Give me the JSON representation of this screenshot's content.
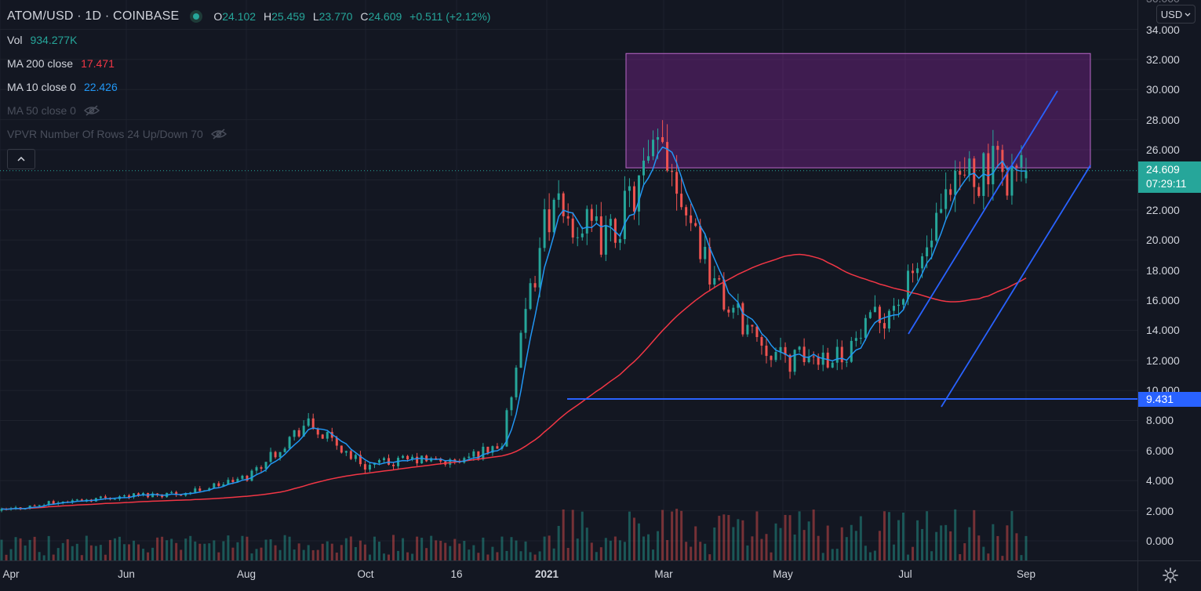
{
  "header": {
    "symbol": "ATOM/USD · 1D · COINBASE",
    "o_label": "O",
    "o_value": "24.102",
    "h_label": "H",
    "h_value": "25.459",
    "l_label": "L",
    "l_value": "23.770",
    "c_label": "C",
    "c_value": "24.609",
    "change": "+0.511 (+2.12%)"
  },
  "indicators": {
    "vol_label": "Vol",
    "vol_value": "934.277K",
    "ma200_label": "MA 200 close",
    "ma200_value": "17.471",
    "ma10_label": "MA 10 close 0",
    "ma10_value": "22.426",
    "ma50_label": "MA 50 close 0",
    "vpvr_label": "VPVR Number Of Rows 24 Up/Down 70"
  },
  "currency_button": "USD",
  "price_scale": {
    "top_partial": "36.000",
    "ticks": [
      "34.000",
      "32.000",
      "30.000",
      "28.000",
      "26.000",
      "24.000",
      "22.000",
      "20.000",
      "18.000",
      "16.000",
      "14.000",
      "12.000",
      "10.000",
      "8.000",
      "6.000",
      "4.000",
      "2.000",
      "0.000"
    ],
    "current_price": "24.609",
    "countdown": "07:29:11",
    "support_price": "9.431"
  },
  "time_scale": {
    "labels": [
      "Apr",
      "Jun",
      "Aug",
      "Oct",
      "16",
      "2021",
      "Mar",
      "May",
      "Jul",
      "Sep"
    ]
  },
  "colors": {
    "background": "#131722",
    "up": "#26a69a",
    "down": "#ef5350",
    "ma200": "#f23645",
    "ma10": "#2196f3",
    "trendline": "#2962ff",
    "zone_fill": "#9c27b0"
  },
  "chart_data": {
    "type": "candlestick",
    "symbol": "ATOM/USD",
    "interval": "1D",
    "ylim": [
      0,
      36
    ],
    "x_range": [
      "2020-04",
      "2021-10"
    ],
    "approx_close_path": [
      {
        "date": "2020-04",
        "close": 2.0
      },
      {
        "date": "2020-05",
        "close": 2.6
      },
      {
        "date": "2020-06",
        "close": 3.0
      },
      {
        "date": "2020-07",
        "close": 3.2
      },
      {
        "date": "2020-08",
        "close": 4.2
      },
      {
        "date": "2020-09",
        "close": 7.8
      },
      {
        "date": "2020-10",
        "close": 5.0
      },
      {
        "date": "2020-11",
        "close": 5.4
      },
      {
        "date": "2020-12",
        "close": 5.2
      },
      {
        "date": "2021-01",
        "close": 6.5
      },
      {
        "date": "2021-02",
        "close": 22.0
      },
      {
        "date": "2021-03",
        "close": 20.0
      },
      {
        "date": "2021-04",
        "close": 26.5
      },
      {
        "date": "2021-05",
        "close": 16.0
      },
      {
        "date": "2021-06",
        "close": 12.0
      },
      {
        "date": "2021-07",
        "close": 12.5
      },
      {
        "date": "2021-08",
        "close": 16.5
      },
      {
        "date": "2021-09",
        "close": 24.609
      }
    ],
    "annotations": {
      "resistance_zone": [
        24.8,
        32.4
      ],
      "support_level": 9.431
    }
  }
}
